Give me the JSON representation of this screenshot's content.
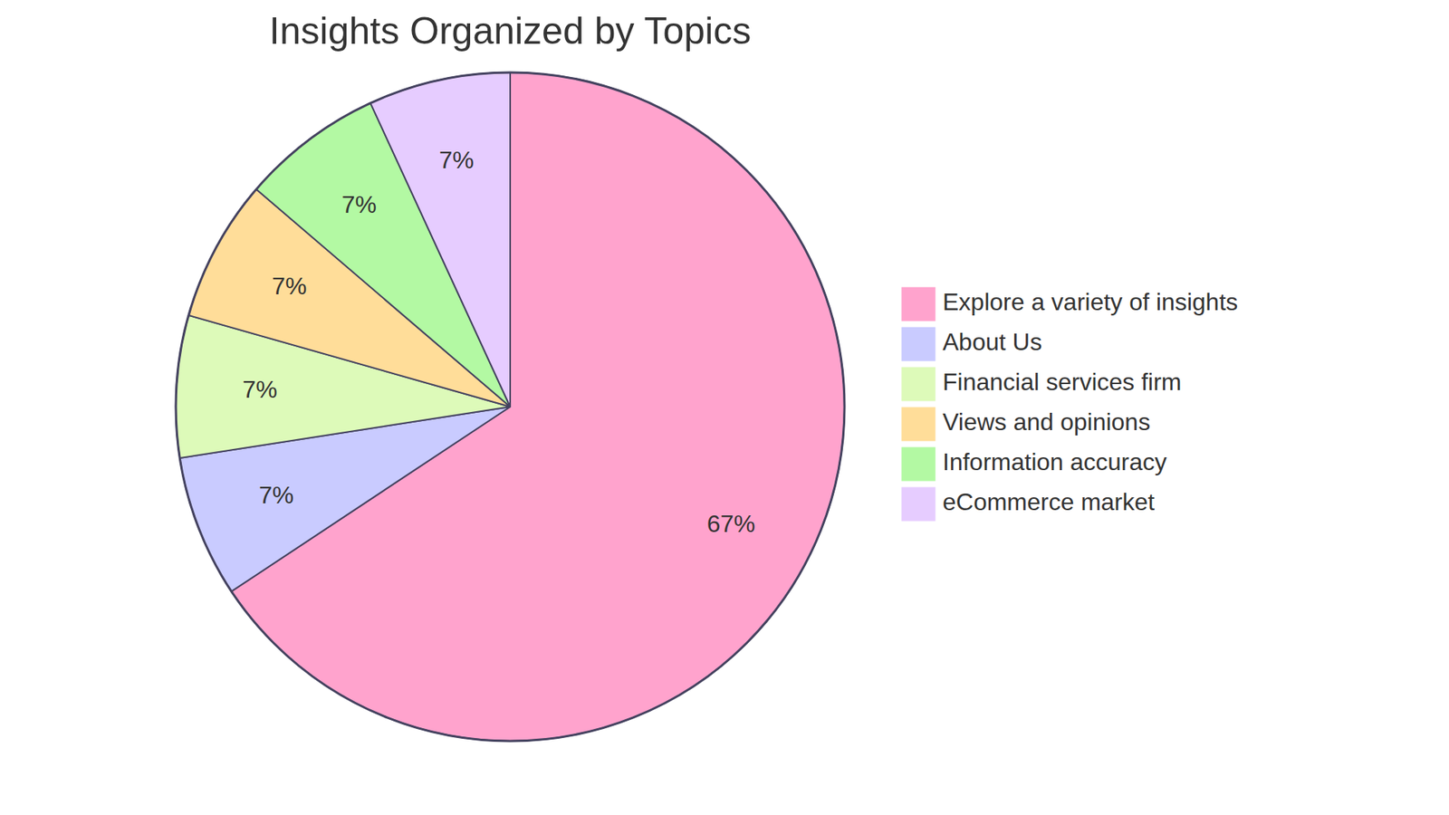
{
  "chart_data": {
    "type": "pie",
    "title": "Insights Organized by Topics",
    "categories": [
      "Explore a variety of insights",
      "About Us",
      "Financial services firm",
      "Views and opinions",
      "Information accuracy",
      "eCommerce market"
    ],
    "values": [
      67,
      7,
      7,
      7,
      7,
      7
    ],
    "value_labels": [
      "67%",
      "7%",
      "7%",
      "7%",
      "7%",
      "7%"
    ],
    "colors": [
      "#ffa3cd",
      "#c9cbff",
      "#ddfab9",
      "#ffdd99",
      "#b3f9a3",
      "#e6ccff"
    ],
    "data_labels": true,
    "legend": "right"
  }
}
